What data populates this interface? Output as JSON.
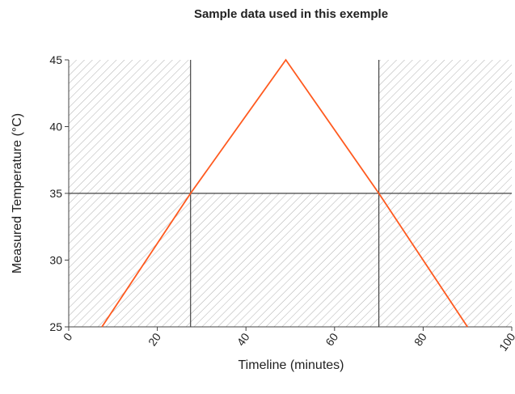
{
  "chart_data": {
    "type": "line",
    "title": "Sample data used in this exemple",
    "x_label": "Timeline (minutes)",
    "y_label": "Measured Temperature (°C)",
    "x": [
      7.5,
      27.5,
      49,
      70,
      90
    ],
    "series": [
      {
        "color": "#ff5a1f",
        "values": [
          25,
          35,
          45,
          35,
          25
        ]
      }
    ],
    "xlim": [
      0,
      100
    ],
    "xticks": [
      0,
      20,
      40,
      60,
      80,
      100
    ],
    "ylim": [
      25,
      45
    ],
    "yticks": [
      25,
      30,
      35,
      40,
      45
    ],
    "reference_lines": {
      "x": [
        27.5,
        70
      ],
      "y": [
        35
      ]
    }
  }
}
